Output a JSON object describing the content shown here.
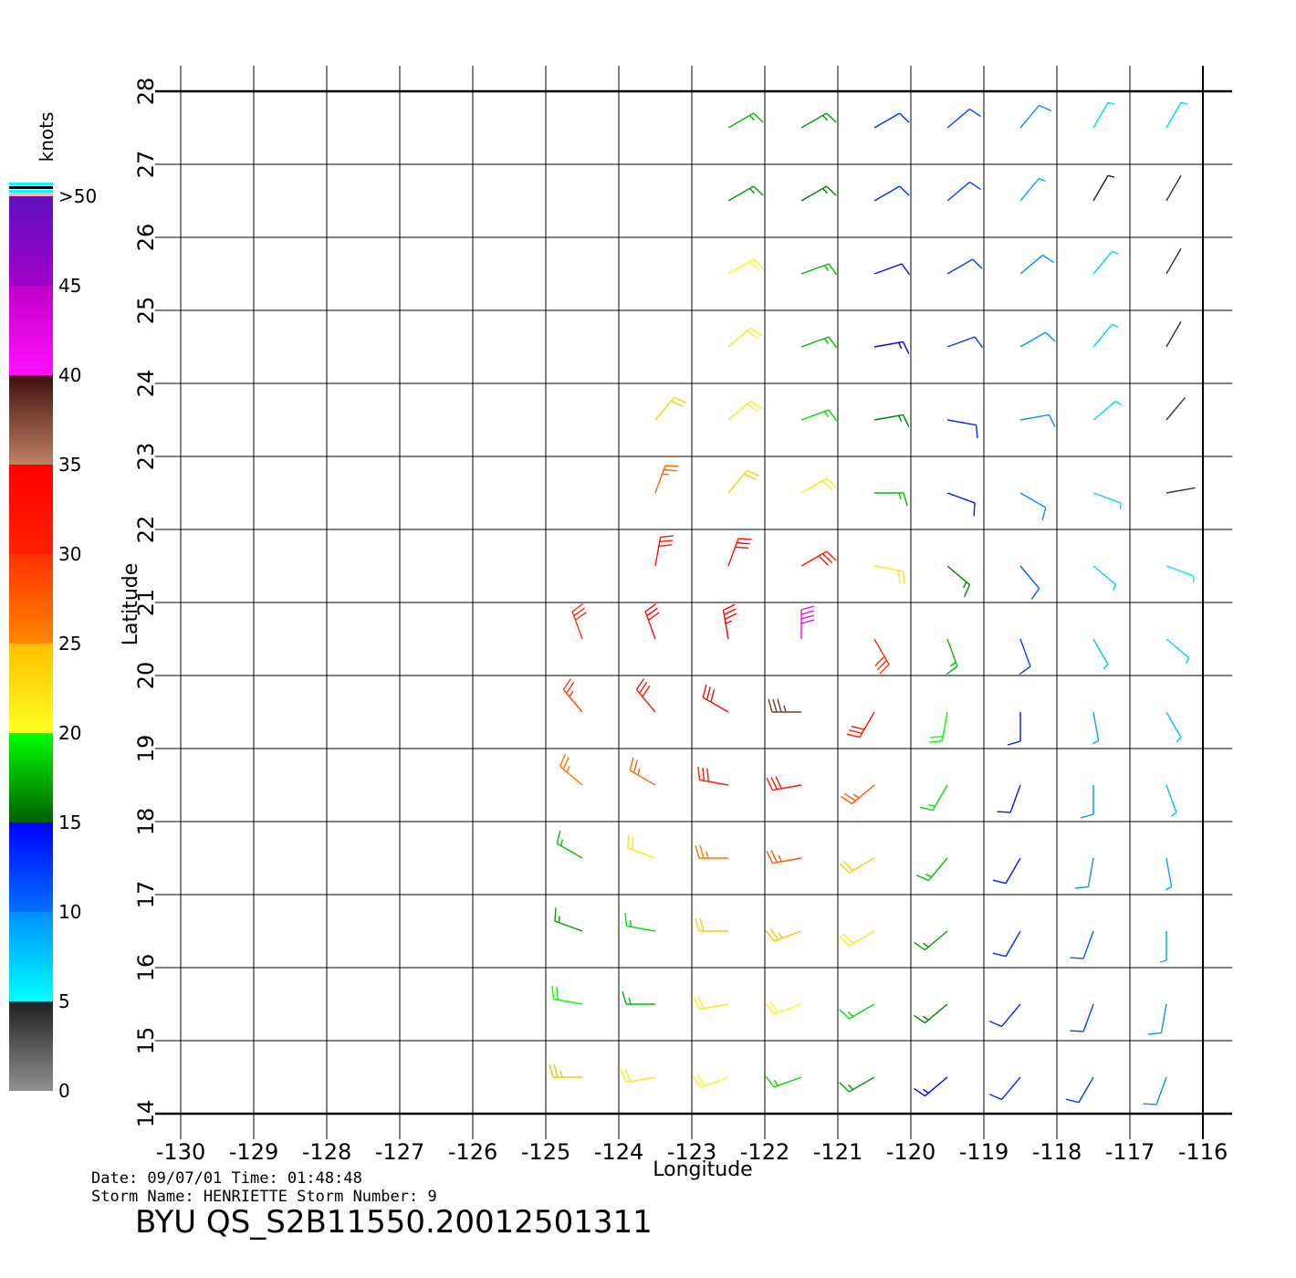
{
  "chart_data": {
    "type": "barb",
    "title": "BYU  QS_S2B11550.20012501311",
    "date_line": "Date:  09/07/01   Time:  01:48:48",
    "storm_line": "Storm  Name:  HENRIETTE   Storm  Number:  9",
    "x_label": "Longitude",
    "y_label": "Latitude",
    "xlim": [
      -130,
      -116
    ],
    "ylim": [
      14,
      28
    ],
    "xticks": [
      -130,
      -129,
      -128,
      -127,
      -126,
      -125,
      -124,
      -123,
      -122,
      -121,
      -120,
      -119,
      -118,
      -117,
      -116
    ],
    "yticks": [
      14,
      15,
      16,
      17,
      18,
      19,
      20,
      21,
      22,
      23,
      24,
      25,
      26,
      27,
      28
    ],
    "grid": true,
    "colorbar": {
      "title": "knots",
      "ticks": [
        0,
        5,
        10,
        15,
        20,
        25,
        30,
        35,
        40,
        45,
        {
          "value": 50,
          "label": ">50"
        }
      ],
      "colors": [
        [
          "#909090",
          "#202020"
        ],
        [
          "#00ffff",
          "#0090ff"
        ],
        [
          "#0070ff",
          "#0000ff"
        ],
        [
          "#006000",
          "#00ff00"
        ],
        [
          "#ffff20",
          "#ffc000"
        ],
        [
          "#ff8800",
          "#ff3000"
        ],
        [
          "#ff2000",
          "#ff0000"
        ],
        [
          "#c08060",
          "#401010"
        ],
        [
          "#ff10ff",
          "#c000c8"
        ],
        [
          "#a000c8",
          "#6010c0"
        ]
      ]
    },
    "lon": [
      -124.5,
      -123.5,
      -122.5,
      -121.5,
      -120.5,
      -119.5,
      -118.5,
      -117.5,
      -116.5
    ],
    "lat": [
      27.5,
      26.5,
      25.5,
      24.5,
      23.5,
      22.5,
      21.5,
      20.5,
      19.5,
      18.5,
      17.5,
      16.5,
      15.5,
      14.5
    ],
    "speed": [
      [
        null,
        null,
        18,
        17,
        13,
        12,
        10,
        7,
        7
      ],
      [
        null,
        null,
        17,
        16,
        13,
        12,
        9,
        5,
        4
      ],
      [
        null,
        null,
        21,
        18,
        14,
        12,
        10,
        7,
        4
      ],
      [
        null,
        null,
        22,
        18,
        15,
        12,
        10,
        7,
        4
      ],
      [
        null,
        24,
        22,
        19,
        16,
        13,
        10,
        7,
        4
      ],
      [
        null,
        27,
        24,
        22,
        18,
        14,
        10,
        7,
        4
      ],
      [
        null,
        32,
        33,
        31,
        22,
        16,
        11,
        7,
        6
      ],
      [
        30,
        33,
        35,
        42,
        30,
        18,
        12,
        8,
        7
      ],
      [
        29,
        31,
        33,
        38,
        31,
        20,
        14,
        9,
        8
      ],
      [
        26,
        27,
        31,
        32,
        28,
        19,
        14,
        10,
        8
      ],
      [
        18,
        22,
        26,
        28,
        24,
        18,
        14,
        10,
        9
      ],
      [
        17,
        19,
        24,
        25,
        22,
        17,
        13,
        11,
        9
      ],
      [
        20,
        18,
        22,
        21,
        19,
        16,
        13,
        12,
        10
      ],
      [
        25,
        22,
        21,
        19,
        17,
        15,
        13,
        12,
        10
      ]
    ],
    "direction": [
      [
        null,
        null,
        60,
        60,
        60,
        50,
        40,
        30,
        30
      ],
      [
        null,
        null,
        60,
        60,
        60,
        50,
        40,
        30,
        30
      ],
      [
        null,
        null,
        60,
        70,
        70,
        60,
        50,
        40,
        30
      ],
      [
        null,
        null,
        50,
        70,
        80,
        70,
        60,
        40,
        30
      ],
      [
        null,
        40,
        50,
        70,
        80,
        100,
        80,
        50,
        40
      ],
      [
        null,
        20,
        40,
        60,
        90,
        110,
        120,
        110,
        80
      ],
      [
        null,
        10,
        20,
        60,
        100,
        130,
        140,
        130,
        110
      ],
      [
        340,
        340,
        350,
        0,
        150,
        160,
        160,
        150,
        130
      ],
      [
        320,
        320,
        300,
        270,
        210,
        190,
        180,
        170,
        150
      ],
      [
        310,
        300,
        280,
        260,
        230,
        210,
        200,
        180,
        160
      ],
      [
        300,
        290,
        270,
        260,
        240,
        220,
        210,
        190,
        170
      ],
      [
        290,
        280,
        270,
        250,
        240,
        230,
        210,
        200,
        180
      ],
      [
        280,
        270,
        260,
        250,
        240,
        230,
        220,
        200,
        190
      ],
      [
        270,
        260,
        250,
        250,
        240,
        230,
        220,
        210,
        200
      ]
    ]
  }
}
